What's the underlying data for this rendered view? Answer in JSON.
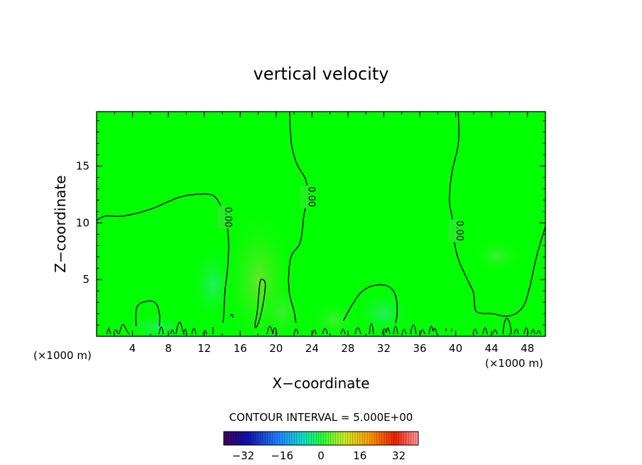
{
  "chart_data": {
    "type": "heatmap",
    "title": "vertical velocity",
    "xlabel": "X−coordinate",
    "ylabel": "Z−coordinate",
    "x_units": "(×1000 m)",
    "y_units": "(×1000 m)",
    "xlim": [
      0,
      50
    ],
    "ylim": [
      0,
      19.8
    ],
    "x_ticks": [
      4,
      8,
      12,
      16,
      20,
      24,
      28,
      32,
      36,
      40,
      44,
      48
    ],
    "y_ticks": [
      5,
      10,
      15
    ],
    "contour_interval_text": "CONTOUR INTERVAL = 5.000E+00",
    "contour_label": "0.00",
    "colorbar": {
      "range": [
        -40,
        40
      ],
      "ticks": [
        -32,
        -16,
        0,
        16,
        32
      ],
      "tick_labels": [
        "−32",
        "−16",
        "0",
        "16",
        "32"
      ]
    },
    "field_note_colors": {
      "background": "#00ff00",
      "weak_positive": "#66ee33",
      "weak_negative": "#33ee88"
    },
    "zero_contours": [
      {
        "label_at": [
          14,
          10.5
        ],
        "points": [
          [
            0,
            10.2
          ],
          [
            1,
            10.6
          ],
          [
            3,
            10.6
          ],
          [
            6,
            11.2
          ],
          [
            9,
            12.2
          ],
          [
            11,
            12.5
          ],
          [
            13,
            12.4
          ],
          [
            14,
            11.2
          ],
          [
            14.5,
            10.0
          ],
          [
            14.7,
            8.2
          ],
          [
            14.6,
            6
          ],
          [
            14.3,
            4
          ],
          [
            14.2,
            2.3
          ],
          [
            14.1,
            1.2
          ]
        ]
      },
      {
        "label_at": [
          23.3,
          12.3
        ],
        "points": [
          [
            21.5,
            19.8
          ],
          [
            21.7,
            17
          ],
          [
            22.3,
            15.2
          ],
          [
            23.3,
            13.8
          ],
          [
            23.5,
            12.2
          ],
          [
            23.1,
            10.7
          ],
          [
            22.7,
            8.3
          ],
          [
            21.7,
            7.1
          ],
          [
            21.4,
            5.4
          ],
          [
            21.5,
            3.7
          ],
          [
            22,
            2.2
          ],
          [
            22.2,
            1.2
          ]
        ]
      },
      {
        "label_at": [
          39.8,
          9.3
        ],
        "points": [
          [
            40.3,
            19.8
          ],
          [
            40.3,
            17
          ],
          [
            39.6,
            14.5
          ],
          [
            39.3,
            12
          ],
          [
            39.6,
            10.5
          ],
          [
            39.7,
            9
          ],
          [
            40.3,
            6.8
          ],
          [
            41.3,
            5
          ],
          [
            42,
            3.8
          ],
          [
            42.3,
            2.2
          ],
          [
            44,
            2
          ],
          [
            46,
            1.8
          ],
          [
            47.5,
            2.6
          ],
          [
            48.3,
            4.5
          ],
          [
            49,
            7
          ],
          [
            50,
            9.7
          ]
        ]
      },
      {
        "label_at": null,
        "points": [
          [
            27.5,
            1.4
          ],
          [
            28.5,
            2.8
          ],
          [
            29.5,
            3.9
          ],
          [
            31,
            4.5
          ],
          [
            32.5,
            4.4
          ],
          [
            33.3,
            3.6
          ],
          [
            33.5,
            2.2
          ],
          [
            33.3,
            1.1
          ]
        ]
      },
      {
        "label_at": null,
        "points": [
          [
            4.4,
            0.9
          ],
          [
            4.5,
            2.6
          ],
          [
            5.7,
            3.1
          ],
          [
            6.6,
            2.9
          ],
          [
            7,
            2.0
          ],
          [
            7,
            0.9
          ]
        ]
      },
      {
        "label_at": null,
        "points": [
          [
            17.6,
            0.9
          ],
          [
            17.9,
            2.2
          ],
          [
            18.2,
            4.7
          ],
          [
            18.5,
            5.0
          ],
          [
            18.8,
            4.6
          ],
          [
            18.6,
            3.1
          ],
          [
            18.2,
            1.6
          ],
          [
            17.8,
            0.8
          ],
          [
            17.6,
            0.9
          ]
        ]
      }
    ]
  }
}
